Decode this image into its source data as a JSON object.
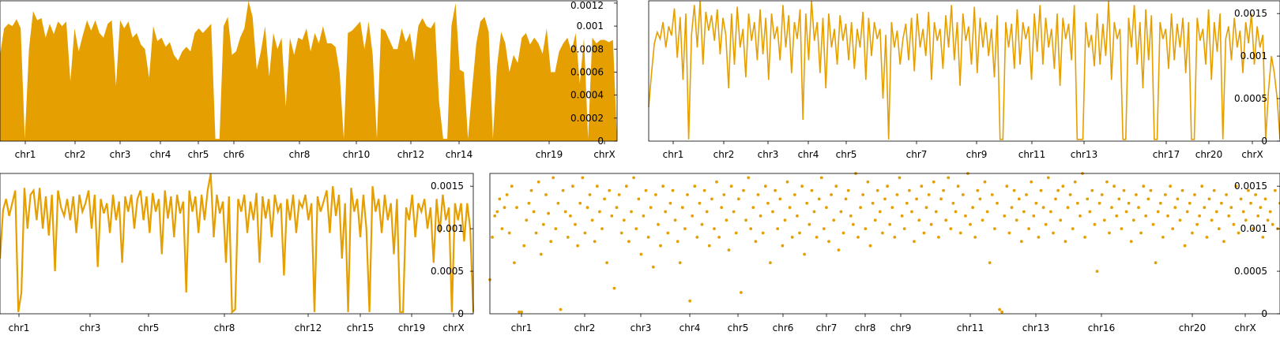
{
  "colors": {
    "series": "#E69F00",
    "axis": "#000000",
    "background": "#FFFFFF"
  },
  "chart_data": [
    {
      "type": "area",
      "title": "",
      "xlabel": "",
      "ylabel": "",
      "ylim": [
        0,
        0.00122
      ],
      "y_ticks": [
        "0",
        "0.0002",
        "0.0004",
        "0.0006",
        "0.0008",
        "0.001",
        "0.0012"
      ],
      "x_tick_labels": [
        "chr1",
        "chr2",
        "chr3",
        "chr4",
        "chr5",
        "chr6",
        "chr8",
        "chr10",
        "chr12",
        "chr14",
        "chr19",
        "chrX"
      ],
      "grid": false,
      "series": [
        {
          "values": [
            0.00075,
            0.00098,
            0.00102,
            0.001,
            0.00106,
            0.00098,
            2e-05,
            0.0008,
            0.00113,
            0.00105,
            0.00107,
            0.0009,
            0.00102,
            0.00093,
            0.00104,
            0.001,
            0.00104,
            0.00052,
            0.00098,
            0.00078,
            0.00092,
            0.00105,
            0.00096,
            0.00105,
            0.00094,
            0.0009,
            0.00102,
            0.00105,
            0.00048,
            0.00105,
            0.00098,
            0.00104,
            0.0009,
            0.00094,
            0.00084,
            0.0008,
            0.00055,
            0.001,
            0.00087,
            0.0009,
            0.00082,
            0.00086,
            0.00075,
            0.0007,
            0.00078,
            0.00082,
            0.00078,
            0.00094,
            0.00098,
            0.00094,
            0.00098,
            0.00102,
            2e-05,
            2e-05,
            0.001,
            0.00108,
            0.00075,
            0.00078,
            0.0009,
            0.00098,
            0.00122,
            0.00108,
            0.00062,
            0.00078,
            0.001,
            0.00056,
            0.00094,
            0.0008,
            0.0009,
            0.0003,
            0.0009,
            0.00075,
            0.0009,
            0.00088,
            0.00098,
            0.00078,
            0.00094,
            0.00085,
            0.001,
            0.00085,
            0.00085,
            0.00082,
            0.0006,
            2e-05,
            0.00094,
            0.00096,
            0.001,
            0.00104,
            0.0008,
            0.00104,
            0.00075,
            2e-05,
            0.00098,
            0.00096,
            0.00088,
            0.0008,
            0.0008,
            0.00098,
            0.00086,
            0.00094,
            0.0007,
            0.001,
            0.00107,
            0.001,
            0.00098,
            0.00104,
            0.00035,
            2e-05,
            2e-05,
            0.001,
            0.0012,
            0.00062,
            0.0006,
            2e-05,
            0.00045,
            0.00085,
            0.00104,
            0.00108,
            0.00095,
            2e-05,
            0.00065,
            0.00095,
            0.00085,
            0.0006,
            0.00075,
            0.00068,
            0.0009,
            0.00094,
            0.00084,
            0.0009,
            0.00085,
            0.00076,
            0.00098,
            0.0006,
            0.0006,
            0.00078,
            0.00085,
            0.0009,
            0.00078,
            0.00094,
            0.0005,
            0.0009,
            2e-05,
            0.0009,
            0.00085,
            0.00088,
            0.00088,
            0.00086,
            0.00088,
            0.0
          ]
        }
      ]
    },
    {
      "type": "line",
      "title": "",
      "xlabel": "",
      "ylabel": "",
      "ylim": [
        0,
        0.00165
      ],
      "y_ticks": [
        "0",
        "0.0005",
        "0.001",
        "0.0015"
      ],
      "x_tick_labels": [
        "chr1",
        "chr2",
        "chr3",
        "chr4",
        "chr5",
        "chr7",
        "chr9",
        "chr11",
        "chr13",
        "chr17",
        "chr20",
        "chrX"
      ],
      "grid": false,
      "series": [
        {
          "values": [
            0.0004,
            0.0008,
            0.00115,
            0.00128,
            0.0012,
            0.0014,
            0.0011,
            0.00135,
            0.00124,
            0.00156,
            0.00098,
            0.00146,
            0.00072,
            0.0015,
            2e-05,
            0.00125,
            0.0016,
            0.0011,
            0.00165,
            0.0009,
            0.00152,
            0.0013,
            0.00148,
            0.00118,
            0.00155,
            0.00102,
            0.00145,
            0.00125,
            0.00062,
            0.0015,
            0.0009,
            0.00158,
            0.0011,
            0.00132,
            0.00075,
            0.0015,
            0.00118,
            0.0014,
            0.00095,
            0.00155,
            0.00102,
            0.00145,
            0.00072,
            0.0015,
            0.0012,
            0.00135,
            0.00095,
            0.0016,
            0.0011,
            0.00148,
            0.0008,
            0.0014,
            0.0012,
            0.00155,
            0.00025,
            0.0015,
            0.00095,
            0.00165,
            0.00118,
            0.0014,
            0.0008,
            0.00145,
            0.00062,
            0.0015,
            0.0011,
            0.00132,
            0.0009,
            0.00148,
            0.00118,
            0.00138,
            0.00095,
            0.0014,
            0.00085,
            0.00132,
            0.0011,
            0.00152,
            0.00072,
            0.00145,
            0.001,
            0.0014,
            0.0012,
            0.00132,
            0.0005,
            0.00125,
            2e-05,
            0.0014,
            0.0011,
            0.0013,
            0.0009,
            0.0012,
            0.00138,
            0.00095,
            0.00145,
            0.00082,
            0.0015,
            0.0011,
            0.00132,
            0.001,
            0.00152,
            0.00072,
            0.0014,
            0.00118,
            0.00132,
            0.00085,
            0.00148,
            0.0011,
            0.0016,
            0.00095,
            0.0014,
            0.00065,
            0.0015,
            0.00118,
            0.00135,
            0.0009,
            0.00158,
            0.0008,
            0.00145,
            0.0011,
            0.0014,
            0.001,
            0.00132,
            0.00075,
            0.00148,
            2e-05,
            2e-05,
            0.0014,
            0.0011,
            0.00138,
            0.00085,
            0.00155,
            0.0009,
            0.0014,
            0.0012,
            0.00135,
            0.00072,
            0.0015,
            0.00105,
            0.0016,
            0.0009,
            0.00145,
            0.0011,
            0.00132,
            0.00085,
            0.0015,
            0.00065,
            0.00145,
            0.0012,
            0.00138,
            0.00095,
            0.0016,
            2e-05,
            2e-05,
            2e-05,
            0.0014,
            0.0011,
            0.00125,
            0.00088,
            0.0015,
            0.0009,
            0.00138,
            0.001,
            0.00165,
            0.00072,
            0.0014,
            0.0012,
            0.00132,
            2e-05,
            2e-05,
            0.00145,
            0.0011,
            0.0016,
            0.0009,
            0.0014,
            0.00062,
            0.00155,
            0.00095,
            0.00148,
            2e-05,
            2e-05,
            0.0014,
            0.0012,
            0.00132,
            0.00085,
            0.0015,
            0.00095,
            0.00138,
            0.0011,
            0.00145,
            0.0008,
            0.0014,
            2e-05,
            2e-05,
            0.00145,
            0.00118,
            0.00132,
            0.0009,
            0.00155,
            0.00072,
            0.0014,
            0.00105,
            0.0015,
            2e-05,
            0.0012,
            0.00135,
            0.00095,
            0.00145,
            0.0011,
            0.0013,
            0.0008,
            0.0014,
            0.00115,
            0.0015,
            0.0009,
            0.00135,
            0.0011,
            0.00125,
            2e-05,
            0.0006,
            0.001,
            0.0008,
            0.0005,
            2e-05
          ]
        }
      ]
    },
    {
      "type": "line",
      "title": "",
      "xlabel": "",
      "ylabel": "",
      "ylim": [
        0,
        0.00165
      ],
      "y_ticks": [
        "0",
        "0.0005",
        "0.001",
        "0.0015"
      ],
      "x_tick_labels": [
        "chr1",
        "chr3",
        "chr5",
        "chr8",
        "chr12",
        "chr15",
        "chr19",
        "chrX"
      ],
      "grid": false,
      "series": [
        {
          "values": [
            0.00065,
            0.00122,
            0.00135,
            0.00115,
            0.0013,
            0.00145,
            2e-05,
            0.00025,
            0.00148,
            0.001,
            0.0014,
            0.00145,
            0.0011,
            0.00148,
            0.001,
            0.00138,
            0.00092,
            0.0014,
            0.0005,
            0.00145,
            0.00125,
            0.00115,
            0.00135,
            0.0011,
            0.00138,
            0.00095,
            0.0014,
            0.0012,
            0.0013,
            0.00145,
            0.001,
            0.0014,
            0.00055,
            0.00135,
            0.00118,
            0.0013,
            0.00095,
            0.0014,
            0.0011,
            0.00132,
            0.0006,
            0.00138,
            0.0012,
            0.0014,
            0.001,
            0.00135,
            0.00145,
            0.0011,
            0.00138,
            0.00095,
            0.00142,
            0.0012,
            0.00135,
            0.0007,
            0.00145,
            0.00112,
            0.00138,
            0.0009,
            0.0014,
            0.00118,
            0.00132,
            0.00025,
            0.00145,
            0.0012,
            0.00138,
            0.00095,
            0.0014,
            0.0011,
            0.00145,
            0.00165,
            0.0009,
            0.0014,
            0.00118,
            0.00132,
            0.0006,
            0.00138,
            2e-05,
            5e-05,
            0.00135,
            0.0012,
            0.0014,
            0.00095,
            0.00132,
            0.0011,
            0.00142,
            0.0006,
            0.00138,
            0.00112,
            0.00135,
            0.0009,
            0.0014,
            0.0012,
            0.0013,
            0.00045,
            0.00135,
            0.0011,
            0.0014,
            0.00095,
            0.00132,
            0.00125,
            0.0014,
            0.0011,
            0.0013,
            2e-05,
            0.00138,
            0.0012,
            0.00132,
            0.00145,
            0.00095,
            0.0015,
            0.00115,
            0.0014,
            0.00065,
            0.0013,
            2e-05,
            0.00148,
            0.0012,
            0.00135,
            0.0009,
            0.0014,
            0.001,
            2e-05,
            0.0015,
            0.0012,
            0.00135,
            0.00095,
            0.0014,
            0.0011,
            0.0013,
            0.0007,
            0.00135,
            2e-05,
            2e-05,
            0.00125,
            0.0011,
            0.0014,
            0.0009,
            0.0013,
            0.0012,
            0.00135,
            0.001,
            0.00125,
            0.0006,
            0.00135,
            0.00095,
            0.0014,
            0.0011,
            0.00125,
            2e-05,
            0.0013,
            0.0011,
            0.0013,
            0.00085,
            0.0013,
            0.001,
            2e-05
          ]
        }
      ]
    },
    {
      "type": "scatter",
      "title": "",
      "xlabel": "",
      "ylabel": "",
      "ylim": [
        0,
        0.00165
      ],
      "y_ticks": [
        "0",
        "0.0005",
        "0.001",
        "0.0015"
      ],
      "x_tick_labels": [
        "chr1",
        "chr2",
        "chr3",
        "chr4",
        "chr5",
        "chr6",
        "chr7",
        "chr8",
        "chr9",
        "chr11",
        "chr13",
        "chr16",
        "chr20",
        "chrX"
      ],
      "grid": false,
      "series": [
        {
          "values": [
            0.0004,
            0.0009,
            0.00115,
            0.0012,
            0.00135,
            0.001,
            0.00125,
            0.0014,
            0.00095,
            0.0015,
            0.0006,
            0.00125,
            2e-05,
            2e-05,
            0.0008,
            0.0011,
            0.0013,
            0.00145,
            0.0012,
            0.00095,
            0.00155,
            0.0007,
            0.00105,
            0.0014,
            0.00118,
            0.00085,
            0.0016,
            0.001,
            0.0013,
            5e-05,
            0.00145,
            0.0012,
            0.0009,
            0.00115,
            0.0015,
            0.00105,
            0.0008,
            0.0013,
            0.0016,
            0.00095,
            0.00125,
            0.0014,
            0.0011,
            0.00085,
            0.0015,
            0.0012,
            0.001,
            0.00135,
            0.0006,
            0.00145,
            0.00115,
            0.0003,
            0.00125,
            0.0014,
            0.00095,
            0.0011,
            0.0015,
            0.00085,
            0.0012,
            0.0016,
            0.001,
            0.00135,
            0.0007,
            0.00115,
            0.00145,
            0.0009,
            0.00125,
            0.00055,
            0.0014,
            0.00105,
            0.0008,
            0.0015,
            0.0012,
            0.00095,
            0.0013,
            0.00145,
            0.0011,
            0.00085,
            0.0006,
            0.00125,
            0.001,
            0.0014,
            0.00015,
            0.00115,
            0.0015,
            0.0009,
            0.0013,
            0.00105,
            0.00145,
            0.0012,
            0.0008,
            0.00135,
            0.001,
            0.00155,
            0.0009,
            0.00125,
            0.0014,
            0.0011,
            0.00075,
            0.0015,
            0.0012,
            0.00095,
            0.00135,
            0.00025,
            0.00145,
            0.0011,
            0.0016,
            0.001,
            0.00125,
            0.00085,
            0.0014,
            0.00115,
            0.00095,
            0.0015,
            0.0013,
            0.0006,
            0.0012,
            0.00145,
            0.001,
            0.00135,
            0.0008,
            0.0011,
            0.00155,
            0.00125,
            0.0009,
            0.0014,
            0.00115,
            0.00095,
            0.0015,
            0.0007,
            0.0013,
            0.00105,
            0.00145,
            0.0012,
            0.0009,
            0.00135,
            0.0016,
            0.001,
            0.00125,
            0.00085,
            0.0014,
            0.0011,
            0.0015,
            0.00075,
            0.0012,
            0.00095,
            0.00135,
            0.00145,
            0.00115,
            0.00105,
            0.00165,
            0.0009,
            0.00125,
            0.0014,
            0.001,
            0.00155,
            0.0008,
            0.0013,
            0.0011,
            0.00145,
            0.0012,
            0.00095,
            0.00135,
            0.0015,
            0.00105,
            0.00125,
            0.0009,
            0.0014,
            0.0016,
            0.00115,
            0.001,
            0.0013,
            0.00145,
            0.0012,
            0.00085,
            0.00135,
            0.0011,
            0.0015,
            0.00095,
            0.00125,
            0.0014,
            0.00105,
            0.00155,
            0.0012,
            0.0009,
            0.00135,
            0.00145,
            0.0011,
            0.0016,
            0.001,
            0.0013,
            0.0012,
            0.0015,
            0.00095,
            0.0014,
            0.00115,
            0.00165,
            0.00105,
            0.00125,
            0.0009,
            0.00145,
            0.00135,
            0.0011,
            0.00155,
            0.0012,
            0.0006,
            0.0014,
            0.001,
            0.0013,
            5e-05,
            2e-05,
            0.00115,
            0.0015,
            0.00095,
            0.00125,
            0.00145,
            0.0011,
            0.00135,
            0.00085,
            0.0012,
            0.0014,
            0.001,
            0.00155,
            0.00115,
            0.0013,
            0.0009,
            0.00145,
            0.00125,
            0.00105,
            0.0016,
            0.0012,
            0.00095,
            0.00135,
            0.00145,
            0.0011,
            0.0015,
            0.00085,
            0.00125,
            0.0014,
            0.001,
            0.00155,
            0.0013,
            0.00115,
            0.00165,
            0.0009,
            0.00135,
            0.0012,
            0.00145,
            0.00105,
            0.0005,
            0.0013,
            0.0014,
            0.0011,
            0.00155,
            0.00095,
            0.00125,
            0.0015,
            0.00115,
            0.00135,
            0.001,
            0.00145,
            0.0012,
            0.0013,
            0.00085,
            0.0011,
            0.0014,
            0.00125,
            0.00095,
            0.0015,
            0.00115,
            0.00135,
            0.00145,
            0.00105,
            0.0006,
            0.0012,
            0.0013,
            0.0009,
            0.0014,
            0.00115,
            0.0015,
            0.001,
            0.00125,
            0.00135,
            0.0011,
            0.00145,
            0.0008,
            0.0012,
            0.0013,
            0.00095,
            0.0014,
            0.00105,
            0.00115,
            0.0015,
            0.00125,
            0.0009,
            0.00135,
            0.0011,
            0.00145,
            0.0012,
            0.001,
            0.0013,
            0.00085,
            0.0014,
            0.00115,
            0.00125,
            0.00105,
            0.0015,
            0.00095,
            0.00135,
            0.0012,
            0.0011,
            0.00145,
            0.0013,
            0.001,
            0.0014,
            0.00115,
            0.00125,
            0.0009,
            0.00135,
            0.0011,
            0.0012,
            0.00105,
            0.00145,
            0.001,
            0.0013
          ]
        }
      ]
    }
  ]
}
